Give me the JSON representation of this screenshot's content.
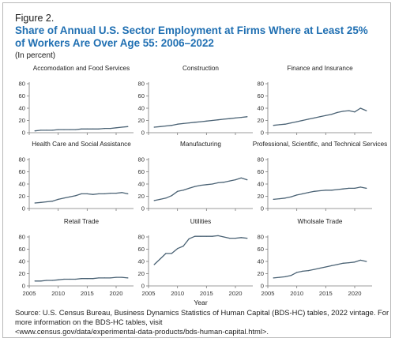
{
  "figure_label": "Figure 2.",
  "title": "Share of Annual U.S. Sector Employment at Firms Where at Least 25% of Workers Are Over Age 55: 2006–2022",
  "subtitle": "(In percent)",
  "source_lines": [
    "Source: U.S. Census Bureau, Business Dynamics Statistics of Human Capital (BDS-HC) tables, 2022 vintage. For",
    "more information on the BDS-HC tables, visit",
    "<www.census.gov/data/experimental-data-products/bds-human-capital.html>."
  ],
  "colors": {
    "line": "#4a6274",
    "title": "#1f6fb2"
  },
  "chart_data": {
    "type": "line",
    "layout": "3x3 small multiples",
    "xlabel": "Year",
    "ylabel": "",
    "xlim": [
      2005,
      2023
    ],
    "ylim": [
      0,
      80
    ],
    "x_ticks": [
      2005,
      2010,
      2015,
      2020
    ],
    "y_ticks": [
      0,
      20,
      40,
      60,
      80
    ],
    "grid": false,
    "x": [
      2006,
      2007,
      2008,
      2009,
      2010,
      2011,
      2012,
      2013,
      2014,
      2015,
      2016,
      2017,
      2018,
      2019,
      2020,
      2021,
      2022
    ],
    "panels": [
      {
        "name": "Accomodation and Food Services",
        "values": [
          3,
          4,
          4,
          4,
          5,
          5,
          5,
          5,
          6,
          6,
          6,
          6,
          7,
          7,
          8,
          9,
          10
        ]
      },
      {
        "name": "Construction",
        "values": [
          9,
          10,
          11,
          12,
          14,
          15,
          16,
          17,
          18,
          19,
          20,
          21,
          22,
          23,
          24,
          25,
          26
        ]
      },
      {
        "name": "Finance and Insurance",
        "values": [
          12,
          13,
          14,
          16,
          18,
          20,
          22,
          24,
          26,
          28,
          30,
          33,
          35,
          36,
          34,
          40,
          36
        ]
      },
      {
        "name": "Health Care and Social Assistance",
        "values": [
          9,
          10,
          11,
          12,
          15,
          17,
          19,
          21,
          24,
          24,
          23,
          24,
          24,
          25,
          25,
          26,
          24
        ]
      },
      {
        "name": "Manufacturing",
        "values": [
          13,
          15,
          17,
          21,
          28,
          30,
          33,
          36,
          38,
          39,
          40,
          42,
          43,
          45,
          47,
          50,
          47
        ]
      },
      {
        "name": "Professional, Scientific, and Technical Services",
        "values": [
          15,
          16,
          17,
          19,
          22,
          24,
          26,
          28,
          29,
          30,
          30,
          31,
          32,
          33,
          33,
          35,
          33
        ]
      },
      {
        "name": "Retail Trade",
        "values": [
          8,
          8,
          9,
          9,
          10,
          11,
          11,
          11,
          12,
          12,
          12,
          13,
          13,
          13,
          14,
          14,
          13
        ]
      },
      {
        "name": "Utilities",
        "values": [
          35,
          44,
          53,
          53,
          61,
          65,
          77,
          81,
          81,
          81,
          81,
          82,
          80,
          78,
          78,
          79,
          78
        ]
      },
      {
        "name": "Wholsale Trade",
        "values": [
          13,
          14,
          15,
          17,
          22,
          24,
          25,
          27,
          29,
          31,
          33,
          35,
          37,
          38,
          39,
          42,
          40
        ]
      }
    ]
  }
}
